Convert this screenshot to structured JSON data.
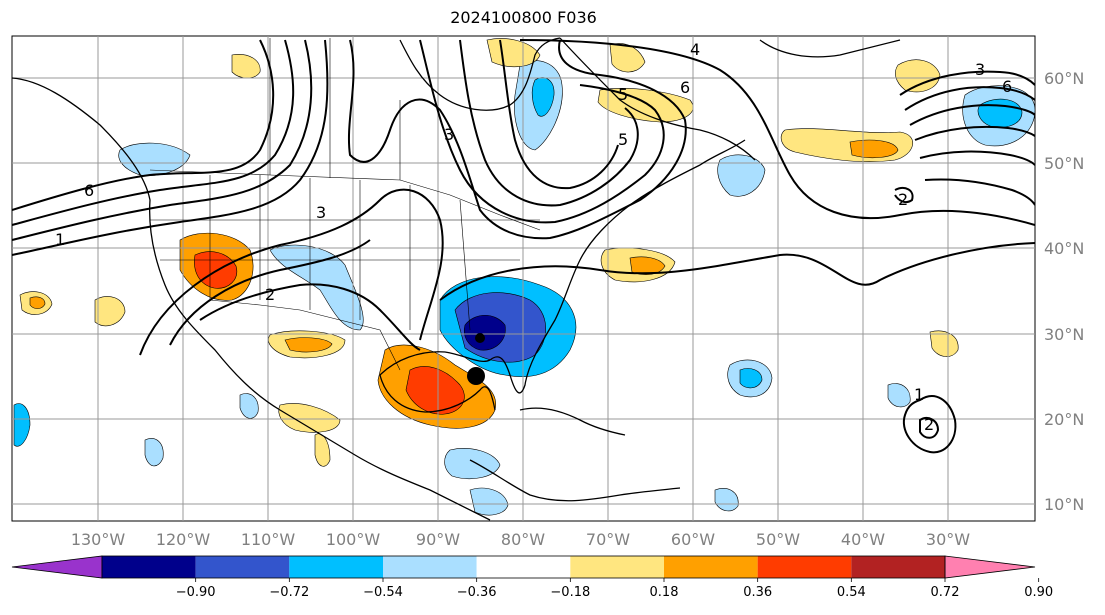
{
  "title": "2024100800 F036",
  "longitude_labels": [
    "130°W",
    "120°W",
    "110°W",
    "100°W",
    "90°W",
    "80°W",
    "70°W",
    "60°W",
    "50°W",
    "40°W",
    "30°W"
  ],
  "latitude_labels": [
    "60°N",
    "50°N",
    "40°N",
    "30°N",
    "20°N",
    "10°N"
  ],
  "colorbar": {
    "ticks": [
      "−0.90",
      "−0.72",
      "−0.54",
      "−0.36",
      "−0.18",
      "0.18",
      "0.36",
      "0.54",
      "0.72",
      "0.90"
    ],
    "colors": [
      "#9933cc",
      "#00008b",
      "#3355cc",
      "#00bfff",
      "#aadfff",
      "#ffffff",
      "#ffe680",
      "#ffa000",
      "#ff3c00",
      "#b22222",
      "#ff80b0"
    ]
  },
  "contour_labels": [
    "6",
    "5",
    "4",
    "3",
    "2",
    "1"
  ],
  "colors": {
    "contour": "#000000",
    "grid": "#999999",
    "axis_label": "#808080"
  }
}
